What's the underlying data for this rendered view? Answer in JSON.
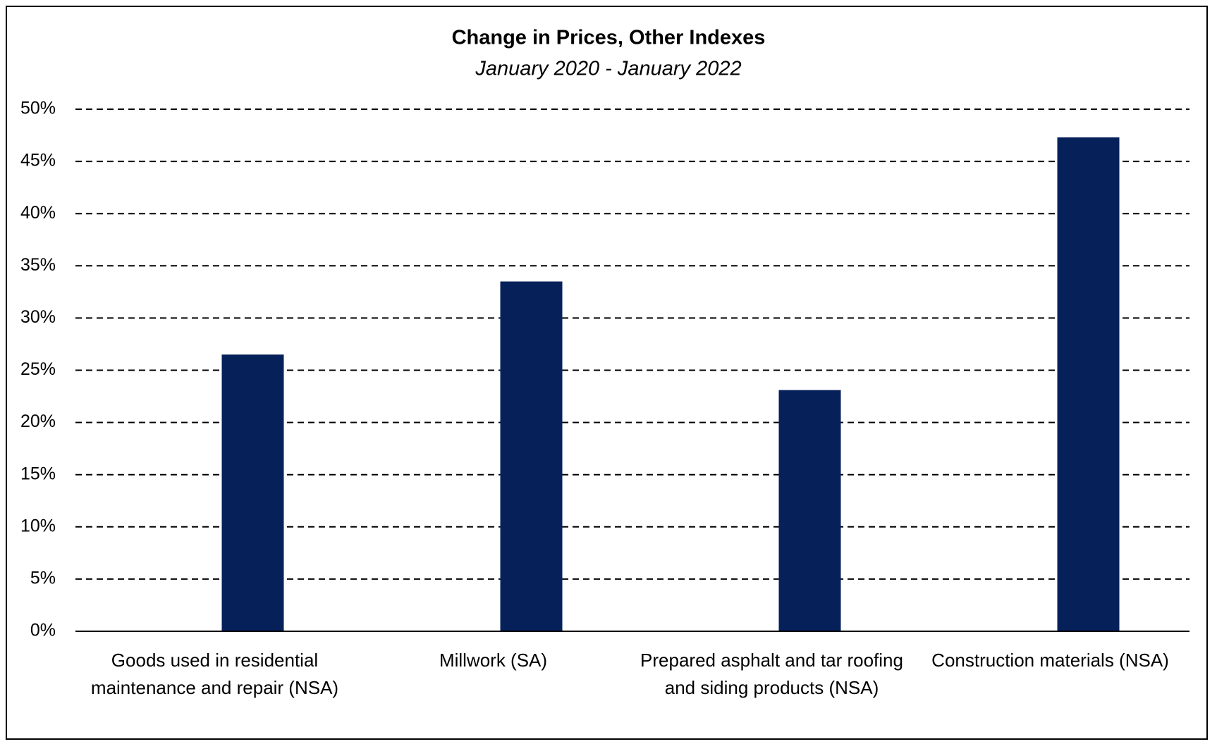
{
  "chart_data": {
    "type": "bar",
    "title": "Change in Prices, Other Indexes",
    "subtitle": "January 2020 - January 2022",
    "categories": [
      "Goods used in residential maintenance and repair (NSA)",
      "Millwork (SA)",
      "Prepared asphalt and tar roofing and siding products (NSA)",
      "Construction materials (NSA)"
    ],
    "values": [
      26.5,
      33.5,
      23.1,
      47.3
    ],
    "color": "#06215a",
    "ylim": [
      0,
      50
    ],
    "yticks": [
      {
        "value": 0,
        "label": "0%"
      },
      {
        "value": 5,
        "label": "5%"
      },
      {
        "value": 10,
        "label": "10%"
      },
      {
        "value": 15,
        "label": "15%"
      },
      {
        "value": 20,
        "label": "20%"
      },
      {
        "value": 25,
        "label": "25%"
      },
      {
        "value": 30,
        "label": "30%"
      },
      {
        "value": 35,
        "label": "35%"
      },
      {
        "value": 40,
        "label": "40%"
      },
      {
        "value": 45,
        "label": "45%"
      },
      {
        "value": 50,
        "label": "50%"
      }
    ],
    "grid": true
  }
}
